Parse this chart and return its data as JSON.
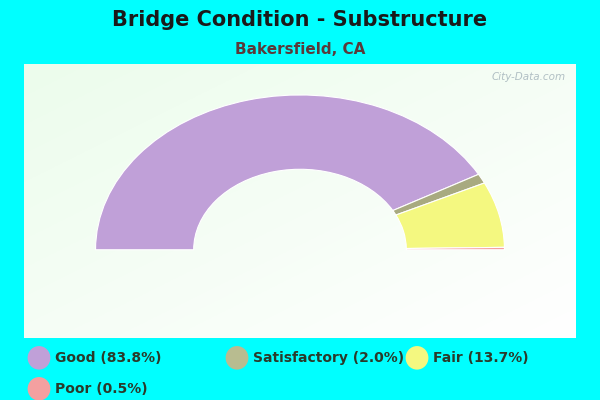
{
  "title": "Bridge Condition - Substructure",
  "subtitle": "Bakersfield, CA",
  "background_color": "#00FFFF",
  "segments": [
    {
      "label": "Good (83.8%)",
      "value": 83.8,
      "color": "#c0a0d8"
    },
    {
      "label": "Satisfactory (2.0%)",
      "value": 2.0,
      "color": "#a8aa80"
    },
    {
      "label": "Fair (13.7%)",
      "value": 13.7,
      "color": "#f4f880"
    },
    {
      "label": "Poor (0.5%)",
      "value": 0.5,
      "color": "#f4a0a0"
    }
  ],
  "legend_colors": [
    "#c0a0d8",
    "#b8bc90",
    "#f4f880",
    "#f4a0a0"
  ],
  "legend_labels": [
    "Good (83.8%)",
    "Satisfactory (2.0%)",
    "Fair (13.7%)",
    "Poor (0.5%)"
  ],
  "title_fontsize": 15,
  "subtitle_fontsize": 11,
  "legend_fontsize": 10,
  "title_color": "#1a1a1a",
  "subtitle_color": "#5a3a3a",
  "legend_text_color": "#2a3a2a",
  "watermark": "City-Data.com"
}
